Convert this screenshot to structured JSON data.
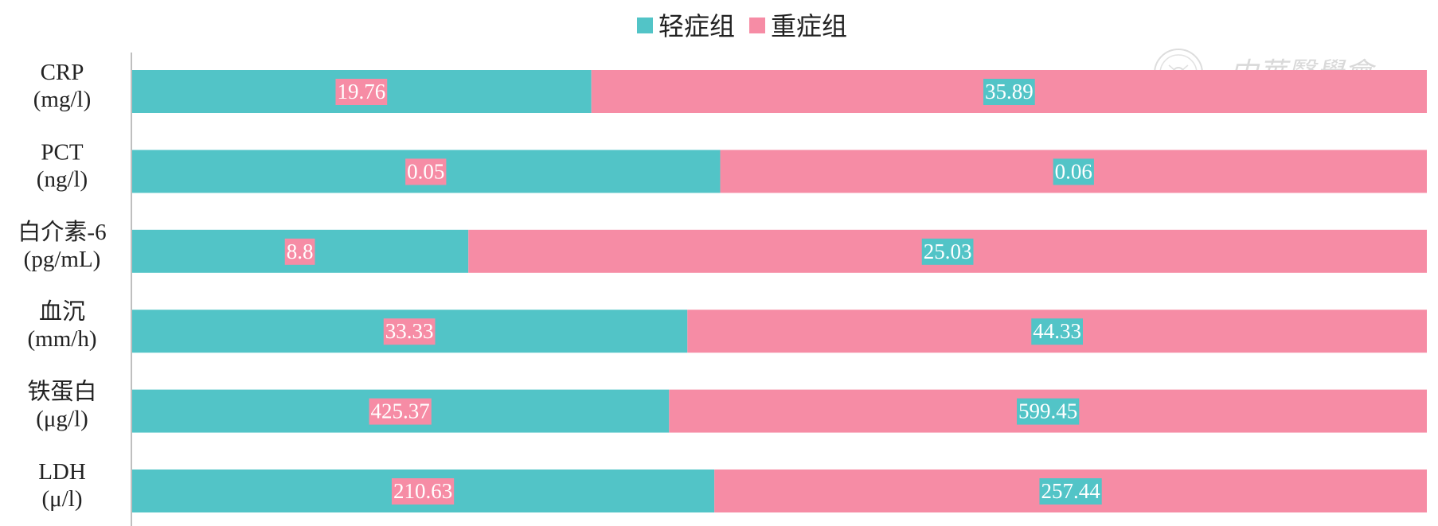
{
  "chart_data": {
    "type": "bar",
    "orientation": "horizontal",
    "stacking": "percent",
    "legend_position": "top",
    "grid": false,
    "categories": [
      [
        "CRP",
        "(mg/l)"
      ],
      [
        "PCT",
        "(ng/l)"
      ],
      [
        "白介素-6",
        "(pg/mL)"
      ],
      [
        "血沉",
        "(mm/h)"
      ],
      [
        "铁蛋白",
        "(μg/l)"
      ],
      [
        "LDH",
        "(μ/l)"
      ]
    ],
    "series": [
      {
        "name": "轻症组",
        "color": "#52c4c7",
        "label_bg": "#f68ca5",
        "values": [
          19.76,
          0.05,
          8.8,
          33.33,
          425.37,
          210.63
        ],
        "labels": [
          "19.76",
          "0.05",
          "8.8",
          "33.33",
          "425.37",
          "210.63"
        ]
      },
      {
        "name": "重症组",
        "color": "#f68ca5",
        "label_bg": "#52c4c7",
        "values": [
          35.89,
          0.06,
          25.03,
          44.33,
          599.45,
          257.44
        ],
        "labels": [
          "35.89",
          "0.06",
          "25.03",
          "44.33",
          "599.45",
          "257.44"
        ]
      }
    ],
    "xlim": [
      0,
      100
    ]
  },
  "watermark": {
    "text": "中華醫學會",
    "icon": "seal-emblem-icon"
  }
}
